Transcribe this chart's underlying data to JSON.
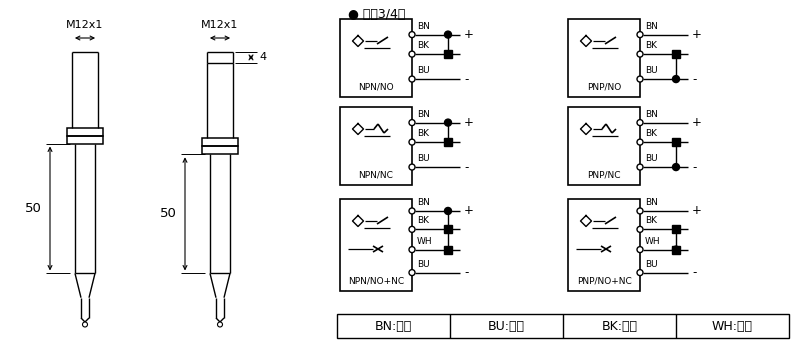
{
  "bg_color": "#ffffff",
  "line_color": "#000000",
  "title_text": "● 直涁3/4线",
  "legend_items": [
    "BN:棕色",
    "BU:兰色",
    "BK:黑色",
    "WH:白色"
  ],
  "dim_label": "M12x1",
  "dim_50": "50",
  "dim_4": "4",
  "circuits": [
    {
      "label": "NPN/NO",
      "wires": [
        "BN",
        "BK",
        "BU"
      ],
      "type": "NO",
      "side": "NPN"
    },
    {
      "label": "PNP/NO",
      "wires": [
        "BN",
        "BK",
        "BU"
      ],
      "type": "NO",
      "side": "PNP"
    },
    {
      "label": "NPN/NC",
      "wires": [
        "BN",
        "BK",
        "BU"
      ],
      "type": "NC",
      "side": "NPN"
    },
    {
      "label": "PNP/NC",
      "wires": [
        "BN",
        "BK",
        "BU"
      ],
      "type": "NC",
      "side": "PNP"
    },
    {
      "label": "NPN/NO+NC",
      "wires": [
        "BN",
        "BK",
        "WH",
        "BU"
      ],
      "type": "NO+NC",
      "side": "NPN"
    },
    {
      "label": "PNP/NO+NC",
      "wires": [
        "BN",
        "BK",
        "WH",
        "BU"
      ],
      "type": "NO+NC",
      "side": "PNP"
    }
  ]
}
